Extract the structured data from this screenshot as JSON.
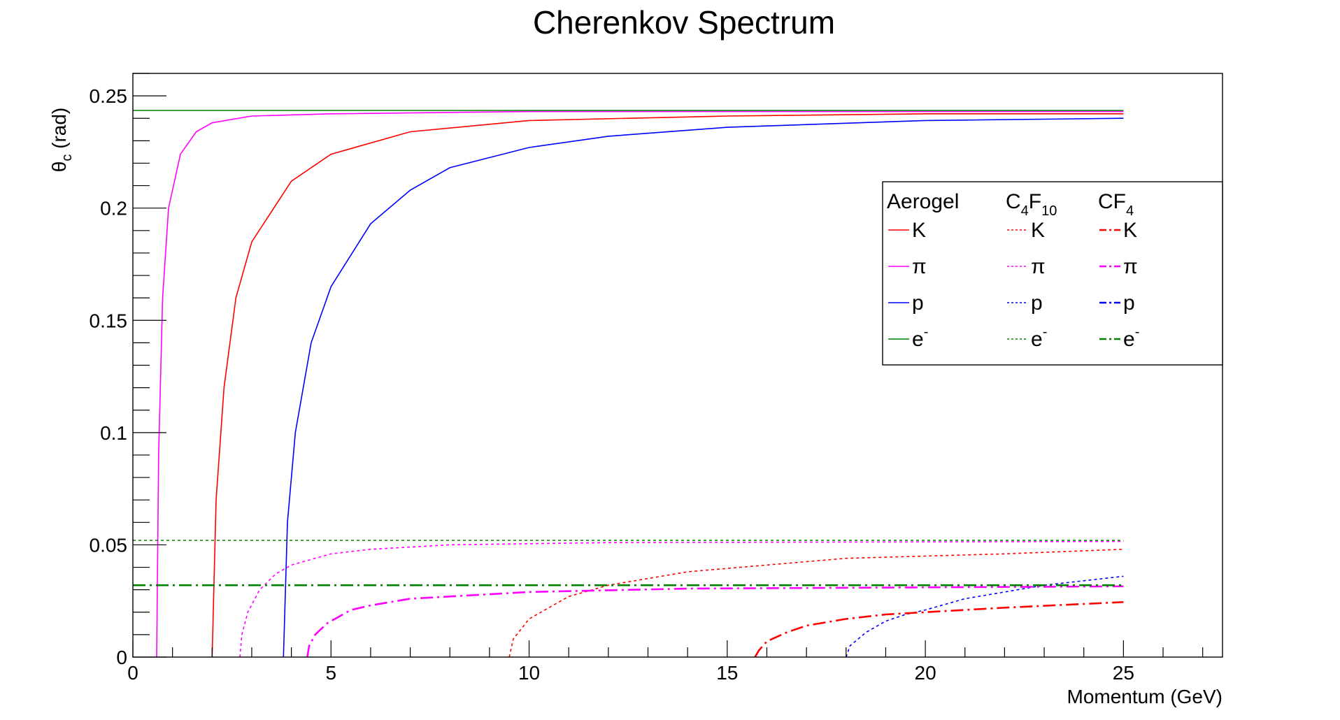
{
  "chart_data": {
    "type": "line",
    "title": "Cherenkov Spectrum",
    "xlabel": "Momentum (GeV)",
    "ylabel": "θ_c (rad)",
    "xlim": [
      0,
      27.5
    ],
    "ylim": [
      0,
      0.26
    ],
    "x_ticks": [
      "0",
      "5",
      "10",
      "15",
      "20",
      "25"
    ],
    "y_ticks": [
      "0",
      "0.05",
      "0.1",
      "0.15",
      "0.2",
      "0.25"
    ],
    "legend_position": "right",
    "legend": {
      "columns": [
        {
          "label": "Aerogel",
          "sub": ""
        },
        {
          "label": "C",
          "sub": "4",
          "label2": "F",
          "sub2": "10"
        },
        {
          "label": "CF",
          "sub": "4"
        }
      ],
      "rows": [
        {
          "label": "K"
        },
        {
          "label": "π"
        },
        {
          "label": "p"
        },
        {
          "label": "e",
          "sup": "-"
        }
      ]
    },
    "colors": {
      "K": "#ff0000",
      "pi": "#ff00ff",
      "p": "#0000ff",
      "e": "#008000"
    },
    "series": [
      {
        "name": "Aerogel K",
        "style": "solid",
        "color": "#ff0000",
        "x": [
          2.0,
          2.1,
          2.3,
          2.6,
          3.0,
          4.0,
          5.0,
          7.0,
          10.0,
          15.0,
          20.0,
          25.0
        ],
        "y": [
          0.0,
          0.07,
          0.12,
          0.16,
          0.185,
          0.212,
          0.224,
          0.234,
          0.239,
          0.241,
          0.242,
          0.242
        ]
      },
      {
        "name": "Aerogel π",
        "style": "solid",
        "color": "#ff00ff",
        "x": [
          0.6,
          0.65,
          0.75,
          0.9,
          1.2,
          1.6,
          2.0,
          3.0,
          5.0,
          10.0,
          25.0
        ],
        "y": [
          0.0,
          0.09,
          0.16,
          0.2,
          0.224,
          0.234,
          0.238,
          0.241,
          0.242,
          0.243,
          0.243
        ]
      },
      {
        "name": "Aerogel p",
        "style": "solid",
        "color": "#0000ff",
        "x": [
          3.8,
          3.9,
          4.1,
          4.5,
          5.0,
          6.0,
          7.0,
          8.0,
          10.0,
          12.0,
          15.0,
          20.0,
          25.0
        ],
        "y": [
          0.0,
          0.06,
          0.1,
          0.14,
          0.165,
          0.193,
          0.208,
          0.218,
          0.227,
          0.232,
          0.236,
          0.239,
          0.24
        ]
      },
      {
        "name": "Aerogel e-",
        "style": "solid",
        "color": "#008000",
        "x": [
          0,
          25
        ],
        "y": [
          0.2435,
          0.2435
        ]
      },
      {
        "name": "C4F10 K",
        "style": "dotted",
        "color": "#ff0000",
        "x": [
          9.5,
          9.6,
          10.0,
          11.0,
          12.0,
          14.0,
          16.0,
          18.0,
          20.0,
          22.0,
          25.0
        ],
        "y": [
          0.0,
          0.008,
          0.017,
          0.027,
          0.032,
          0.038,
          0.041,
          0.044,
          0.045,
          0.046,
          0.048
        ]
      },
      {
        "name": "C4F10 π",
        "style": "dotted",
        "color": "#ff00ff",
        "x": [
          2.7,
          2.75,
          2.9,
          3.2,
          3.6,
          4.0,
          5.0,
          6.0,
          8.0,
          12.0,
          25.0
        ],
        "y": [
          0.0,
          0.01,
          0.02,
          0.03,
          0.037,
          0.041,
          0.046,
          0.048,
          0.05,
          0.051,
          0.0515
        ]
      },
      {
        "name": "C4F10 p",
        "style": "dotted",
        "color": "#0000ff",
        "x": [
          18.0,
          18.1,
          18.5,
          19.0,
          19.5,
          20.0,
          21.0,
          22.0,
          23.0,
          24.0,
          25.0
        ],
        "y": [
          0.0,
          0.005,
          0.011,
          0.016,
          0.019,
          0.021,
          0.026,
          0.029,
          0.032,
          0.034,
          0.036
        ]
      },
      {
        "name": "C4F10 e-",
        "style": "dotted",
        "color": "#008000",
        "x": [
          0,
          25
        ],
        "y": [
          0.052,
          0.052
        ]
      },
      {
        "name": "CF4 K",
        "style": "dashdot",
        "color": "#ff0000",
        "x": [
          15.7,
          15.8,
          16.0,
          16.5,
          17.0,
          18.0,
          19.0,
          20.0,
          22.0,
          25.0
        ],
        "y": [
          0.0,
          0.003,
          0.007,
          0.011,
          0.014,
          0.017,
          0.019,
          0.02,
          0.022,
          0.0245
        ]
      },
      {
        "name": "CF4 π",
        "style": "dashdot",
        "color": "#ff00ff",
        "x": [
          4.4,
          4.45,
          4.6,
          4.9,
          5.5,
          6.0,
          7.0,
          8.0,
          10.0,
          14.0,
          25.0
        ],
        "y": [
          0.0,
          0.005,
          0.01,
          0.015,
          0.021,
          0.023,
          0.026,
          0.027,
          0.029,
          0.0305,
          0.0315
        ]
      },
      {
        "name": "CF4 e-",
        "style": "dashdot",
        "color": "#008000",
        "x": [
          0,
          25
        ],
        "y": [
          0.032,
          0.032
        ]
      }
    ]
  }
}
